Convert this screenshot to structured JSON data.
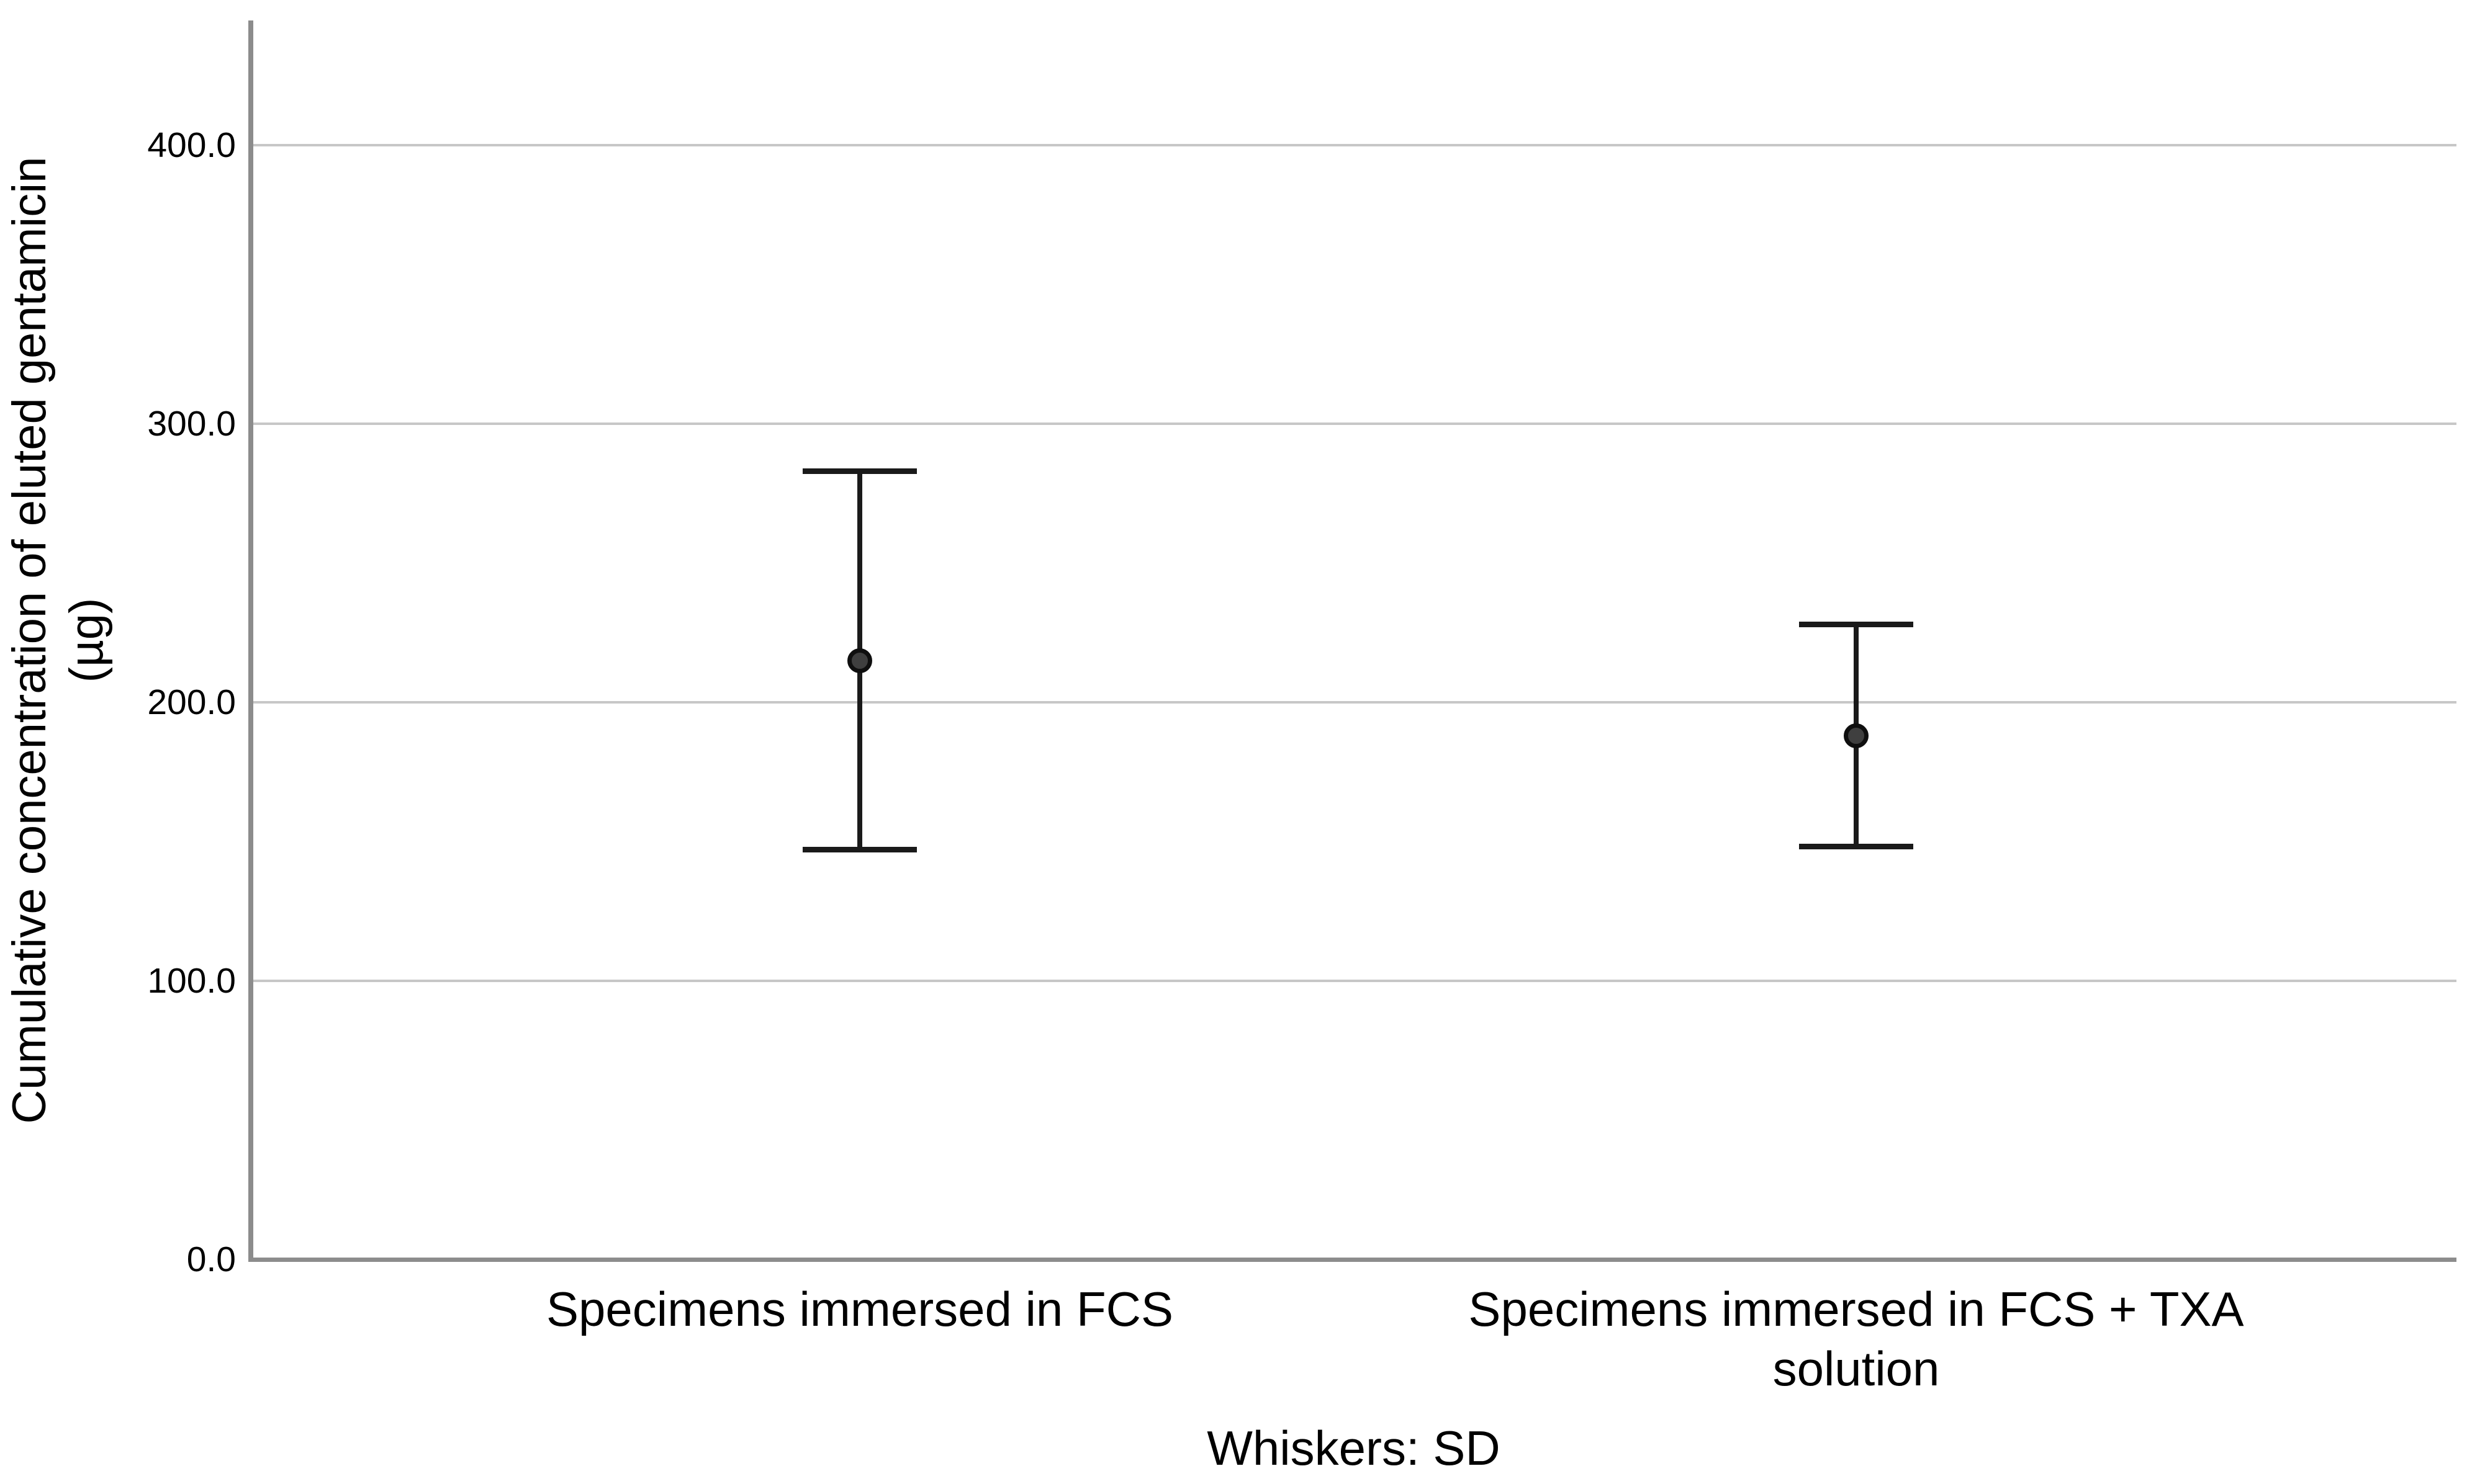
{
  "chart_data": {
    "type": "scatter",
    "subtype": "mean-with-sd-error-bars",
    "title": "",
    "xlabel": "",
    "ylabel": "Cumulative concentration of eluted gentamicin (µg)",
    "ylabel_line1": "Cumulative concentration of eluted gentamicin",
    "ylabel_line2": "(µg)",
    "footnote": "Whiskers: SD",
    "categories": [
      "Specimens immersed in FCS",
      "Specimens immersed in FCS + TXA solution"
    ],
    "yticks": [
      0,
      100,
      200,
      300,
      400
    ],
    "ytick_labels": [
      "0.0",
      "100.0",
      "200.0",
      "300.0",
      "400.0"
    ],
    "ylim": [
      0,
      440
    ],
    "grid": "horizontal",
    "legend": "none",
    "points": [
      {
        "category": "Specimens immersed in FCS",
        "mean": 215,
        "sd": 68,
        "whisker_top": 283,
        "whisker_bottom": 147
      },
      {
        "category": "Specimens immersed in FCS + TXA solution",
        "mean": 188,
        "sd": 40,
        "whisker_top": 228,
        "whisker_bottom": 148
      }
    ],
    "colors": {
      "whisker": "#1a1a1a",
      "mean_dot_fill": "#3f3f3f",
      "mean_dot_ring": "#0f0f0f",
      "gridline": "#c7c7c7",
      "axis": "#8c8c8c",
      "text": "#000000",
      "background": "#ffffff"
    }
  }
}
